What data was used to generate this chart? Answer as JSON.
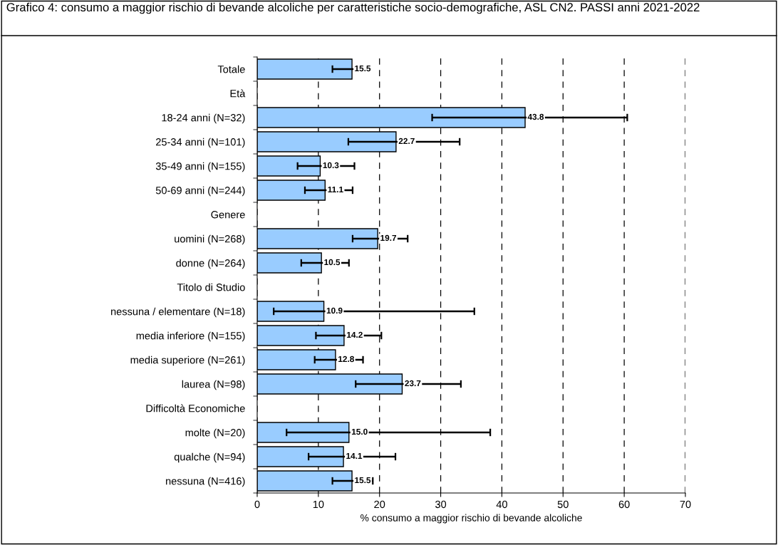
{
  "chart_data": {
    "type": "bar",
    "orientation": "horizontal",
    "title": "Grafico 4: consumo a maggior rischio di bevande alcoliche per caratteristiche socio-demografiche, ASL CN2. PASSI anni 2021-2022",
    "xlabel": "% consumo a maggior rischio di bevande alcoliche",
    "categories": [
      "Totale",
      "Età",
      "18-24 anni (N=32)",
      "25-34 anni (N=101)",
      "35-49 anni (N=155)",
      "50-69 anni (N=244)",
      "Genere",
      "uomini (N=268)",
      "donne (N=264)",
      "Titolo di Studio",
      "nessuna / elementare (N=18)",
      "media inferiore (N=155)",
      "media superiore (N=261)",
      "laurea (N=98)",
      "Difficoltà Economiche",
      "molte (N=20)",
      "qualche (N=94)",
      "nessuna (N=416)"
    ],
    "values": [
      15.5,
      null,
      43.8,
      22.7,
      10.3,
      11.1,
      null,
      19.7,
      10.5,
      null,
      10.9,
      14.2,
      12.8,
      23.7,
      null,
      15.0,
      14.1,
      15.5
    ],
    "errors": [
      [
        12.3,
        18.3
      ],
      null,
      [
        28.6,
        60.5
      ],
      [
        14.9,
        33.1
      ],
      [
        6.6,
        15.9
      ],
      [
        7.8,
        15.6
      ],
      null,
      [
        15.6,
        24.6
      ],
      [
        7.2,
        15.0
      ],
      null,
      [
        2.7,
        35.5
      ],
      [
        9.6,
        20.3
      ],
      [
        9.4,
        17.3
      ],
      [
        16.1,
        33.3
      ],
      null,
      [
        4.8,
        38.1
      ],
      [
        8.4,
        22.6
      ],
      [
        12.3,
        18.9
      ]
    ],
    "value_labels": [
      "15.5",
      null,
      "43.8",
      "22.7",
      "10.3",
      "11.1",
      null,
      "19.7",
      "10.5",
      null,
      "10.9",
      "14.2",
      "12.8",
      "23.7",
      null,
      "15.0",
      "14.1",
      "15.5"
    ],
    "color": "#99ccff",
    "xlim": [
      0,
      70
    ],
    "xticks": [
      0,
      10,
      20,
      30,
      40,
      50,
      60,
      70
    ],
    "grid": "x"
  }
}
